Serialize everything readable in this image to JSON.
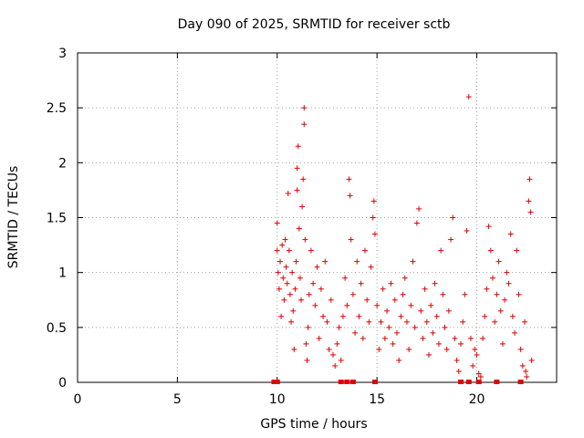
{
  "chart_data": {
    "type": "scatter",
    "title": "Day 090 of 2025, SRMTID for receiver sctb",
    "xlabel": "GPS time / hours",
    "ylabel": "SRMTID / TECUs",
    "xlim": [
      0,
      24
    ],
    "ylim": [
      0,
      3
    ],
    "xticks": [
      0,
      5,
      10,
      15,
      20
    ],
    "yticks": [
      0,
      0.5,
      1,
      1.5,
      2,
      2.5,
      3
    ],
    "xtick_labels": [
      "0",
      "5",
      "10",
      "15",
      "20"
    ],
    "ytick_labels": [
      "0",
      "0.5",
      "1",
      "1.5",
      "2",
      "2.5",
      "3"
    ],
    "grid": true,
    "marker": "plus",
    "color": "#e00000",
    "series": [
      {
        "name": "SRMTID sctb",
        "points": [
          [
            10.0,
            1.45
          ],
          [
            10.0,
            1.2
          ],
          [
            10.05,
            1.0
          ],
          [
            10.1,
            0.85
          ],
          [
            10.15,
            1.1
          ],
          [
            10.2,
            0.6
          ],
          [
            10.25,
            1.25
          ],
          [
            10.3,
            0.95
          ],
          [
            10.35,
            0.75
          ],
          [
            10.4,
            1.3
          ],
          [
            10.45,
            1.05
          ],
          [
            10.5,
            0.9
          ],
          [
            10.55,
            1.72
          ],
          [
            10.6,
            1.2
          ],
          [
            10.65,
            0.8
          ],
          [
            10.7,
            0.55
          ],
          [
            10.75,
            1.0
          ],
          [
            10.8,
            0.65
          ],
          [
            10.85,
            0.3
          ],
          [
            10.9,
            0.85
          ],
          [
            10.95,
            1.1
          ],
          [
            11.0,
            1.95
          ],
          [
            11.0,
            1.75
          ],
          [
            11.05,
            2.15
          ],
          [
            11.1,
            1.4
          ],
          [
            11.15,
            0.95
          ],
          [
            11.2,
            0.75
          ],
          [
            11.25,
            1.6
          ],
          [
            11.3,
            1.85
          ],
          [
            11.35,
            2.5
          ],
          [
            11.35,
            2.35
          ],
          [
            11.4,
            1.3
          ],
          [
            11.45,
            0.35
          ],
          [
            11.5,
            0.2
          ],
          [
            11.55,
            0.5
          ],
          [
            11.6,
            0.8
          ],
          [
            11.7,
            1.2
          ],
          [
            11.8,
            0.9
          ],
          [
            11.9,
            0.7
          ],
          [
            12.0,
            1.05
          ],
          [
            12.1,
            0.4
          ],
          [
            12.2,
            0.85
          ],
          [
            12.3,
            0.6
          ],
          [
            12.4,
            1.1
          ],
          [
            12.5,
            0.55
          ],
          [
            12.6,
            0.3
          ],
          [
            12.7,
            0.75
          ],
          [
            12.8,
            0.25
          ],
          [
            12.9,
            0.15
          ],
          [
            13.0,
            0.35
          ],
          [
            13.1,
            0.5
          ],
          [
            13.2,
            0.2
          ],
          [
            13.3,
            0.6
          ],
          [
            13.4,
            0.95
          ],
          [
            13.5,
            0.7
          ],
          [
            13.6,
            1.85
          ],
          [
            13.65,
            1.7
          ],
          [
            13.7,
            1.3
          ],
          [
            13.8,
            0.8
          ],
          [
            13.9,
            0.45
          ],
          [
            14.0,
            1.1
          ],
          [
            14.1,
            0.6
          ],
          [
            14.2,
            0.9
          ],
          [
            14.3,
            0.4
          ],
          [
            14.4,
            1.2
          ],
          [
            14.5,
            0.75
          ],
          [
            14.6,
            0.55
          ],
          [
            14.7,
            1.05
          ],
          [
            14.8,
            1.5
          ],
          [
            14.85,
            1.65
          ],
          [
            14.9,
            1.35
          ],
          [
            15.0,
            0.7
          ],
          [
            15.1,
            0.3
          ],
          [
            15.2,
            0.55
          ],
          [
            15.3,
            0.85
          ],
          [
            15.4,
            0.4
          ],
          [
            15.5,
            0.65
          ],
          [
            15.6,
            0.5
          ],
          [
            15.7,
            0.9
          ],
          [
            15.8,
            0.35
          ],
          [
            15.9,
            0.75
          ],
          [
            16.0,
            0.45
          ],
          [
            16.1,
            0.2
          ],
          [
            16.2,
            0.6
          ],
          [
            16.3,
            0.8
          ],
          [
            16.4,
            0.95
          ],
          [
            16.5,
            0.55
          ],
          [
            16.6,
            0.3
          ],
          [
            16.7,
            0.7
          ],
          [
            16.8,
            1.1
          ],
          [
            16.9,
            0.5
          ],
          [
            17.0,
            1.45
          ],
          [
            17.1,
            1.58
          ],
          [
            17.2,
            0.65
          ],
          [
            17.3,
            0.4
          ],
          [
            17.4,
            0.85
          ],
          [
            17.5,
            0.55
          ],
          [
            17.6,
            0.25
          ],
          [
            17.7,
            0.7
          ],
          [
            17.8,
            0.45
          ],
          [
            17.9,
            0.9
          ],
          [
            18.0,
            0.6
          ],
          [
            18.1,
            0.35
          ],
          [
            18.2,
            1.2
          ],
          [
            18.3,
            0.8
          ],
          [
            18.4,
            0.5
          ],
          [
            18.5,
            0.3
          ],
          [
            18.6,
            0.65
          ],
          [
            18.7,
            1.3
          ],
          [
            18.8,
            1.5
          ],
          [
            18.9,
            0.4
          ],
          [
            19.0,
            0.2
          ],
          [
            19.1,
            0.1
          ],
          [
            19.2,
            0.35
          ],
          [
            19.3,
            0.55
          ],
          [
            19.4,
            0.8
          ],
          [
            19.5,
            1.38
          ],
          [
            19.6,
            2.6
          ],
          [
            19.7,
            0.4
          ],
          [
            19.8,
            0.15
          ],
          [
            19.9,
            0.3
          ],
          [
            20.0,
            0.25
          ],
          [
            20.1,
            0.08
          ],
          [
            20.2,
            0.05
          ],
          [
            20.3,
            0.4
          ],
          [
            20.4,
            0.6
          ],
          [
            20.5,
            0.85
          ],
          [
            20.6,
            1.42
          ],
          [
            20.7,
            1.2
          ],
          [
            20.8,
            0.95
          ],
          [
            20.9,
            0.55
          ],
          [
            21.0,
            0.8
          ],
          [
            21.1,
            1.1
          ],
          [
            21.2,
            0.65
          ],
          [
            21.3,
            0.35
          ],
          [
            21.4,
            0.75
          ],
          [
            21.5,
            1.0
          ],
          [
            21.6,
            0.9
          ],
          [
            21.7,
            1.35
          ],
          [
            21.8,
            0.6
          ],
          [
            21.9,
            0.45
          ],
          [
            22.0,
            1.2
          ],
          [
            22.1,
            0.8
          ],
          [
            22.2,
            0.3
          ],
          [
            22.3,
            0.15
          ],
          [
            22.4,
            0.55
          ],
          [
            22.45,
            0.1
          ],
          [
            22.5,
            0.05
          ],
          [
            22.6,
            1.65
          ],
          [
            22.65,
            1.85
          ],
          [
            22.7,
            1.55
          ],
          [
            22.75,
            0.2
          ]
        ]
      }
    ],
    "zero_markers": [
      9.85,
      10.0,
      13.2,
      13.5,
      13.8,
      14.9,
      19.2,
      19.6,
      20.1,
      21.0,
      22.2
    ]
  }
}
